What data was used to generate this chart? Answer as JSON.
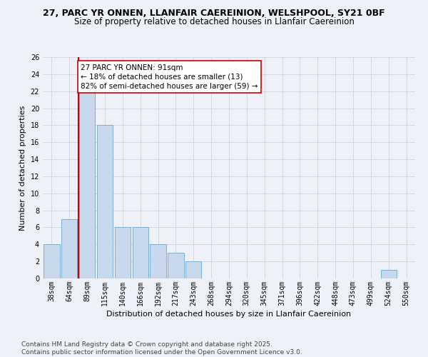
{
  "title1": "27, PARC YR ONNEN, LLANFAIR CAEREINION, WELSHPOOL, SY21 0BF",
  "title2": "Size of property relative to detached houses in Llanfair Caereinion",
  "xlabel": "Distribution of detached houses by size in Llanfair Caereinion",
  "ylabel": "Number of detached properties",
  "categories": [
    "38sqm",
    "64sqm",
    "89sqm",
    "115sqm",
    "140sqm",
    "166sqm",
    "192sqm",
    "217sqm",
    "243sqm",
    "268sqm",
    "294sqm",
    "320sqm",
    "345sqm",
    "371sqm",
    "396sqm",
    "422sqm",
    "448sqm",
    "473sqm",
    "499sqm",
    "524sqm",
    "550sqm"
  ],
  "values": [
    4,
    7,
    22,
    18,
    6,
    6,
    4,
    3,
    2,
    0,
    0,
    0,
    0,
    0,
    0,
    0,
    0,
    0,
    0,
    1,
    0
  ],
  "bar_color": "#c9d9ed",
  "bar_edge_color": "#7bafd4",
  "vline_color": "#cc0000",
  "annotation_text": "27 PARC YR ONNEN: 91sqm\n← 18% of detached houses are smaller (13)\n82% of semi-detached houses are larger (59) →",
  "annotation_box_color": "#ffffff",
  "annotation_box_edge": "#cc0000",
  "ylim": [
    0,
    26
  ],
  "yticks": [
    0,
    2,
    4,
    6,
    8,
    10,
    12,
    14,
    16,
    18,
    20,
    22,
    24,
    26
  ],
  "grid_color": "#d0d8e4",
  "bg_color": "#eef2f8",
  "footer": "Contains HM Land Registry data © Crown copyright and database right 2025.\nContains public sector information licensed under the Open Government Licence v3.0.",
  "title_fontsize": 9,
  "subtitle_fontsize": 8.5,
  "axis_label_fontsize": 8,
  "tick_fontsize": 7,
  "footer_fontsize": 6.5,
  "annot_fontsize": 7.5
}
